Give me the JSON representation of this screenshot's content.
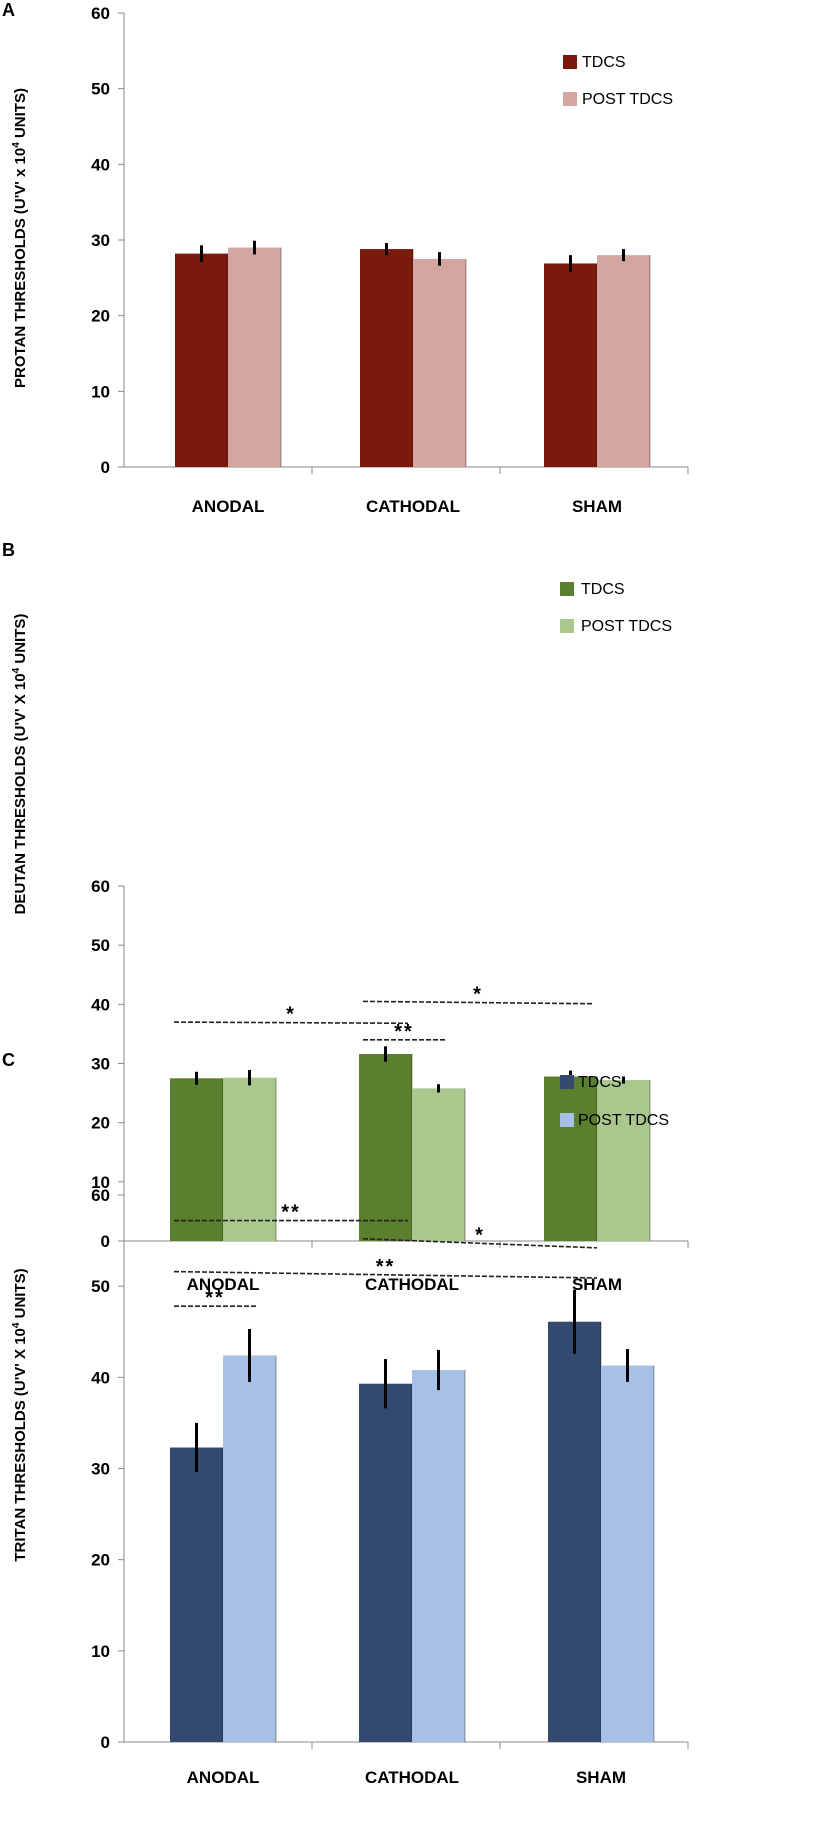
{
  "chart_data": [
    {
      "type": "bar",
      "panel_label": "A",
      "title": "",
      "xlabel": "",
      "ylabel": "PROTAN  THRESHOLDS (U'V' x 10",
      "ylabel_sup": "4",
      "ylabel_tail": " UNITS)",
      "categories": [
        "ANODAL",
        "CATHODAL",
        "SHAM"
      ],
      "series": [
        {
          "name": "TDCS",
          "color": "#7a1a0c",
          "values": [
            28.2,
            28.8,
            26.9
          ],
          "errors": [
            1.1,
            0.8,
            1.1
          ]
        },
        {
          "name": "POST TDCS",
          "color": "#d4a6a2",
          "values": [
            29.0,
            27.5,
            28.0
          ],
          "errors": [
            0.9,
            0.9,
            0.8
          ]
        }
      ],
      "yticks": [
        0,
        10,
        20,
        30,
        40,
        50,
        60
      ],
      "ylim": [
        0,
        60
      ],
      "legend_position": "top-right",
      "significance": []
    },
    {
      "type": "bar",
      "panel_label": "B",
      "title": "",
      "xlabel": "",
      "ylabel": "DEUTAN THRESHOLDS (U'V' X 10",
      "ylabel_sup": "4",
      "ylabel_tail": " UNITS)",
      "categories": [
        "ANODAL",
        "CATHODAL",
        "SHAM"
      ],
      "series": [
        {
          "name": "TDCS",
          "color": "#5a7f2e",
          "values": [
            27.5,
            31.6,
            27.8
          ],
          "errors": [
            1.1,
            1.3,
            1.0
          ]
        },
        {
          "name": "POST TDCS",
          "color": "#aac78e",
          "values": [
            27.6,
            25.8,
            27.2
          ],
          "errors": [
            1.3,
            0.7,
            0.6
          ]
        }
      ],
      "yticks": [
        0,
        10,
        20,
        30,
        40,
        50,
        60
      ],
      "ylim": [
        0,
        60
      ],
      "legend_position": "top-right",
      "significance": [
        {
          "label": "*",
          "from": [
            0,
            0
          ],
          "to": [
            1,
            0
          ],
          "level": 37.0,
          "end_level": 36.8
        },
        {
          "label": "*",
          "from": [
            1,
            0
          ],
          "to": [
            2,
            0
          ],
          "level": 40.5,
          "end_level": 40.1
        },
        {
          "label": "**",
          "from": [
            1,
            0
          ],
          "to": [
            1,
            1
          ],
          "level": 34.0,
          "end_level": 34.0
        }
      ]
    },
    {
      "type": "bar",
      "panel_label": "C",
      "title": "",
      "xlabel": "",
      "ylabel": "TRITAN THRESHOLDS (U'V' X 10",
      "ylabel_sup": "4",
      "ylabel_tail": " UNITS)",
      "categories": [
        "ANODAL",
        "CATHODAL",
        "SHAM"
      ],
      "series": [
        {
          "name": "TDCS",
          "color": "#33496e",
          "values": [
            32.3,
            39.3,
            46.1
          ],
          "errors": [
            2.7,
            2.7,
            3.5
          ]
        },
        {
          "name": "POST TDCS",
          "color": "#a7c0e6",
          "values": [
            42.4,
            40.8,
            41.3
          ],
          "errors": [
            2.9,
            2.2,
            1.8
          ]
        }
      ],
      "yticks": [
        0,
        10,
        20,
        30,
        40,
        50,
        60
      ],
      "ylim": [
        0,
        60
      ],
      "legend_position": "top-right",
      "significance": [
        {
          "label": "**",
          "from": [
            0,
            0
          ],
          "to": [
            1,
            0
          ],
          "level": 57.2,
          "end_level": 57.2
        },
        {
          "label": "*",
          "from": [
            1,
            0
          ],
          "to": [
            2,
            0
          ],
          "level": 55.2,
          "end_level": 54.2
        },
        {
          "label": "**",
          "from": [
            0,
            0
          ],
          "to": [
            2,
            0
          ],
          "level": 51.6,
          "end_level": 50.9
        },
        {
          "label": "**",
          "from": [
            0,
            0
          ],
          "to": [
            0,
            1
          ],
          "level": 47.8,
          "end_level": 47.8
        }
      ]
    }
  ]
}
